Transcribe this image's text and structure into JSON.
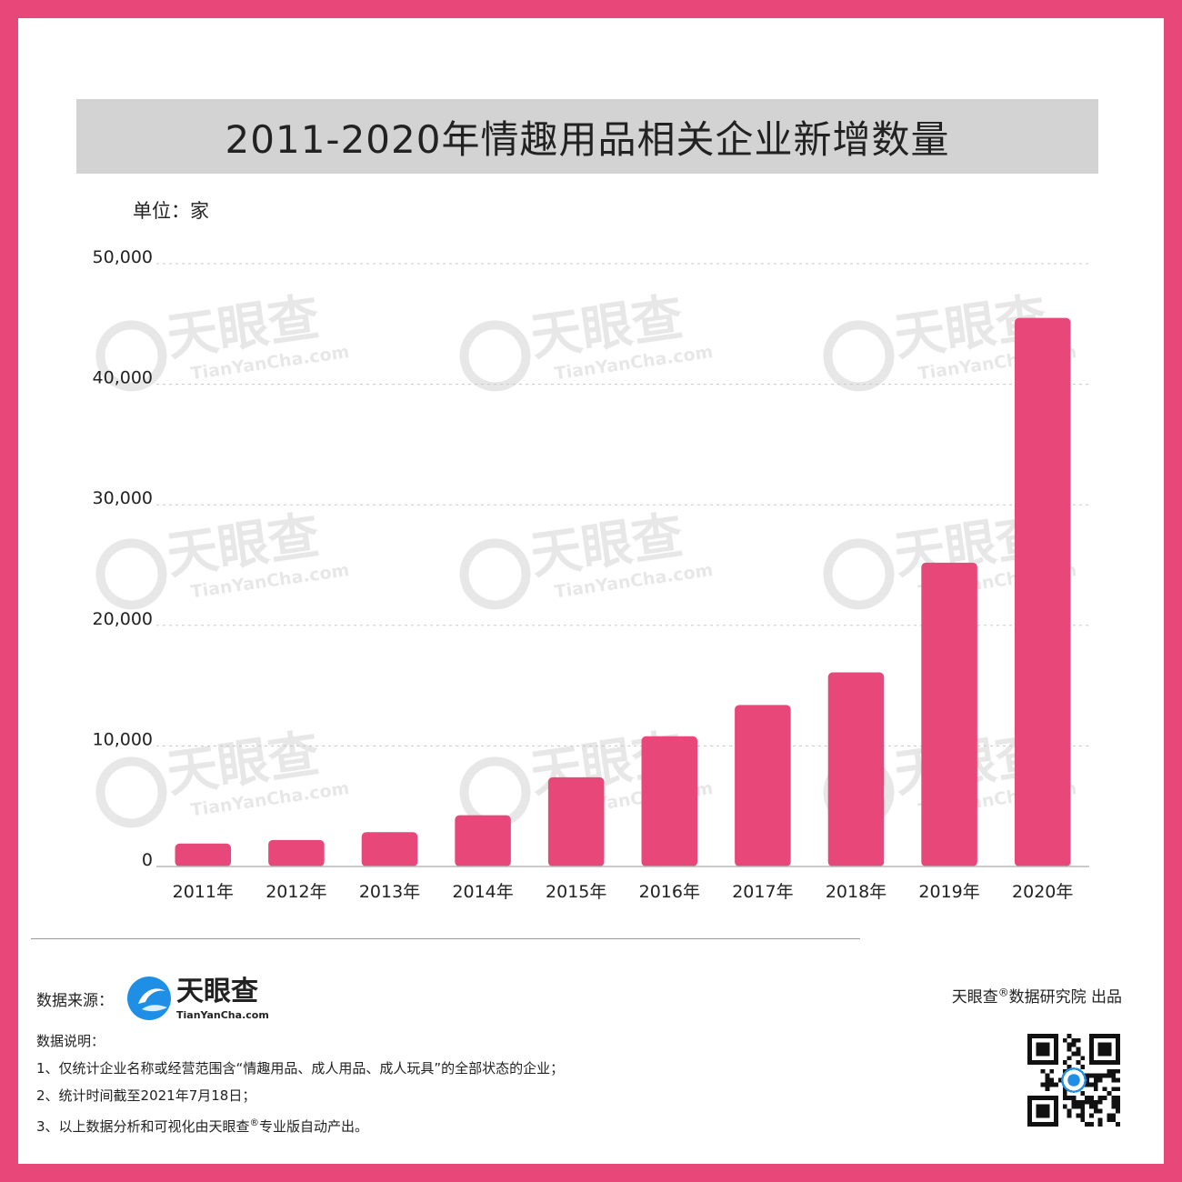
{
  "header": {
    "title": "2011-2020年情趣用品相关企业新增数量",
    "unit": "单位：家"
  },
  "chart_data": {
    "type": "bar",
    "categories": [
      "2011年",
      "2012年",
      "2013年",
      "2014年",
      "2015年",
      "2016年",
      "2017年",
      "2018年",
      "2019年",
      "2020年"
    ],
    "values": [
      1900,
      2200,
      2850,
      4250,
      7400,
      10800,
      13400,
      16100,
      25200,
      45500
    ],
    "ylim": [
      0,
      50000
    ],
    "yticks": [
      0,
      10000,
      20000,
      30000,
      40000,
      50000
    ],
    "ytick_labels": [
      "0",
      "10,000",
      "20,000",
      "30,000",
      "40,000",
      "50,000"
    ],
    "grid": true,
    "bar_color": "#e8477a"
  },
  "watermark": {
    "brand": "天眼查",
    "domain": "TianYanCha.com"
  },
  "footer": {
    "source_label": "数据来源：",
    "logo_brand": "天眼查",
    "logo_domain": "TianYanCha.com",
    "publisher_prefix": "天眼查",
    "publisher_mark": "®",
    "publisher_suffix": "数据研究院 出品",
    "notes_title": "数据说明：",
    "note1": "1、仅统计企业名称或经营范围含“情趣用品、成人用品、成人玩具”的全部状态的企业；",
    "note2": "2、统计时间截至2021年7月18日；",
    "note3_prefix": "3、以上数据分析和可视化由天眼查",
    "note3_mark": "®",
    "note3_suffix": "专业版自动产出。"
  },
  "colors": {
    "frame": "#e8477a",
    "title_bg": "#d3d3d3",
    "logo_blue": "#1f8fe6"
  }
}
